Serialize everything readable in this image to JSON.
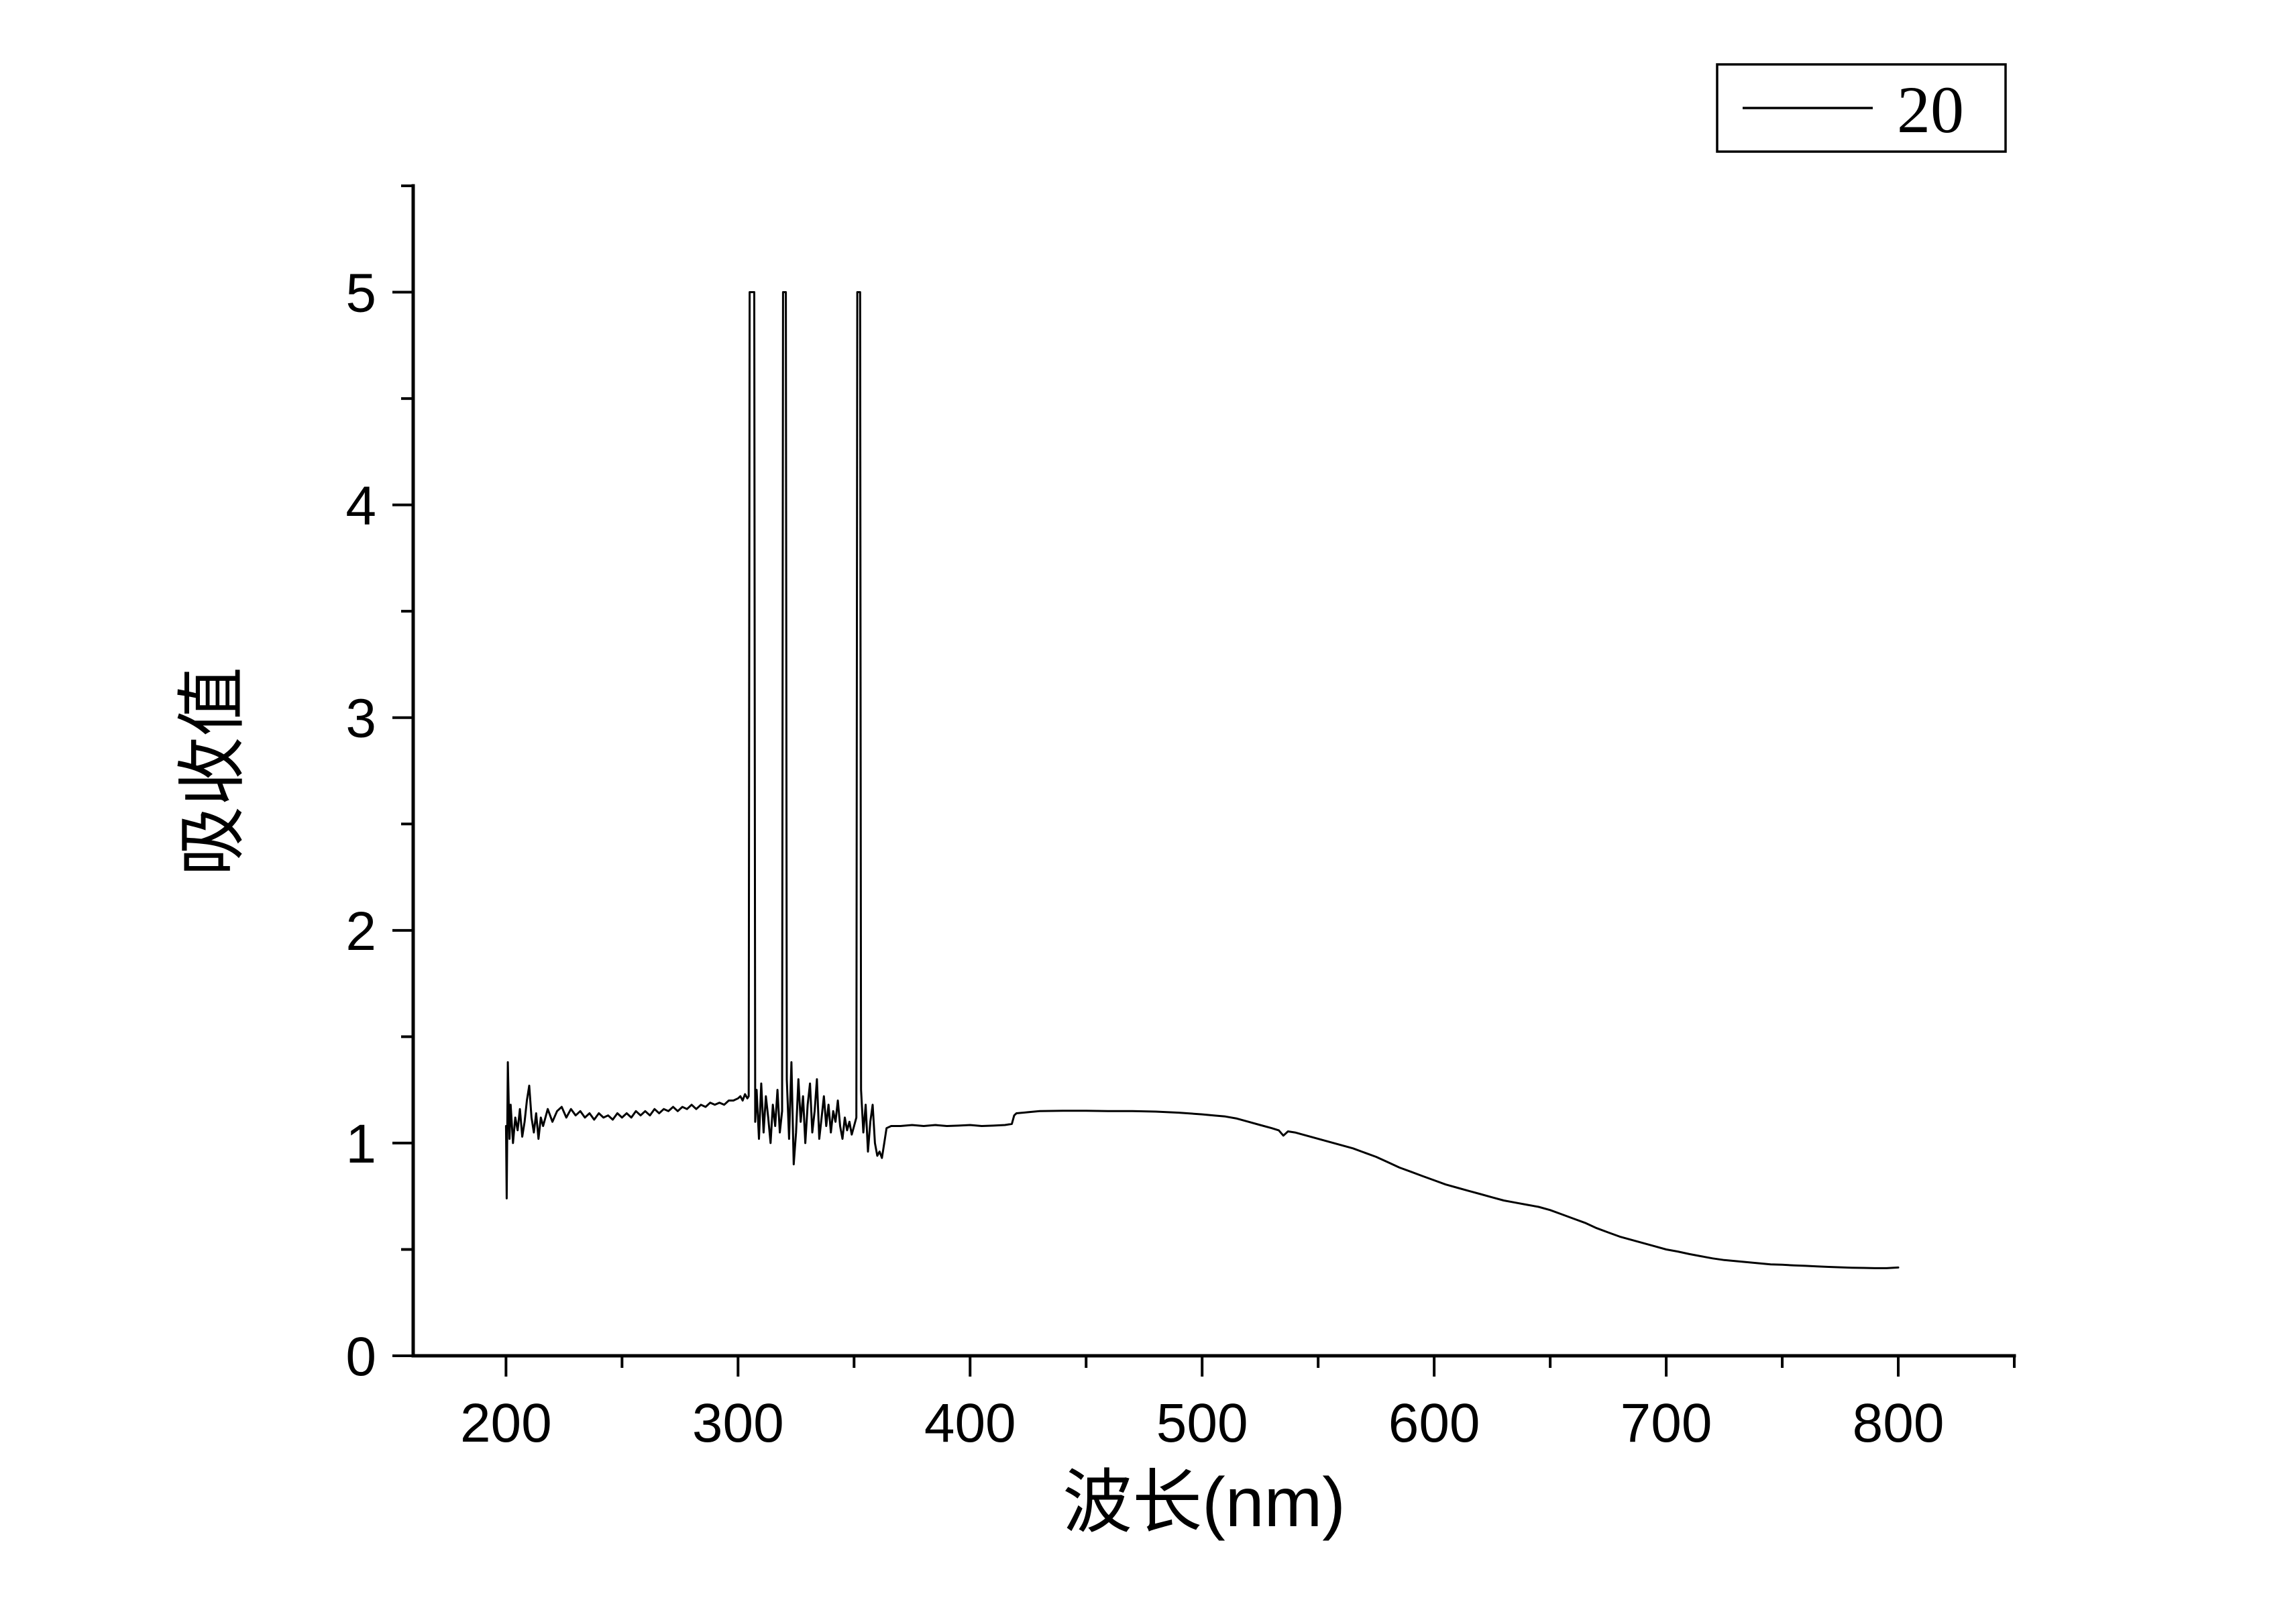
{
  "figure": {
    "background": "#ffffff",
    "line_color": "#000000"
  },
  "legend": {
    "label": "20"
  },
  "chart_data": {
    "type": "line",
    "title": "",
    "xlabel": "波长(nm)",
    "ylabel": "吸收值",
    "xlim": [
      160,
      850
    ],
    "ylim": [
      0,
      5.5
    ],
    "xticks": [
      200,
      300,
      400,
      500,
      600,
      700,
      800
    ],
    "yticks": [
      0,
      1,
      2,
      3,
      4,
      5
    ],
    "x_minor_step": 50,
    "y_minor_step": 0.5,
    "grid": false,
    "legend_position": "top-right-outside",
    "series": [
      {
        "name": "20",
        "color": "#000000",
        "points": [
          [
            200,
            1.08
          ],
          [
            200.3,
            0.74
          ],
          [
            200.8,
            1.38
          ],
          [
            201.5,
            1.02
          ],
          [
            202,
            1.18
          ],
          [
            203,
            1.0
          ],
          [
            204,
            1.12
          ],
          [
            205,
            1.06
          ],
          [
            206,
            1.16
          ],
          [
            207,
            1.03
          ],
          [
            208,
            1.1
          ],
          [
            209,
            1.2
          ],
          [
            210,
            1.27
          ],
          [
            211,
            1.12
          ],
          [
            212,
            1.05
          ],
          [
            213,
            1.14
          ],
          [
            214,
            1.02
          ],
          [
            215,
            1.12
          ],
          [
            216,
            1.08
          ],
          [
            218,
            1.16
          ],
          [
            220,
            1.1
          ],
          [
            222,
            1.15
          ],
          [
            224,
            1.17
          ],
          [
            226,
            1.12
          ],
          [
            228,
            1.16
          ],
          [
            230,
            1.13
          ],
          [
            232,
            1.15
          ],
          [
            234,
            1.12
          ],
          [
            236,
            1.14
          ],
          [
            238,
            1.11
          ],
          [
            240,
            1.14
          ],
          [
            242,
            1.12
          ],
          [
            244,
            1.13
          ],
          [
            246,
            1.11
          ],
          [
            248,
            1.14
          ],
          [
            250,
            1.12
          ],
          [
            252,
            1.14
          ],
          [
            254,
            1.12
          ],
          [
            256,
            1.15
          ],
          [
            258,
            1.13
          ],
          [
            260,
            1.15
          ],
          [
            262,
            1.13
          ],
          [
            264,
            1.16
          ],
          [
            266,
            1.14
          ],
          [
            268,
            1.16
          ],
          [
            270,
            1.15
          ],
          [
            272,
            1.17
          ],
          [
            274,
            1.15
          ],
          [
            276,
            1.17
          ],
          [
            278,
            1.16
          ],
          [
            280,
            1.18
          ],
          [
            282,
            1.16
          ],
          [
            284,
            1.18
          ],
          [
            286,
            1.17
          ],
          [
            288,
            1.19
          ],
          [
            290,
            1.18
          ],
          [
            292,
            1.19
          ],
          [
            294,
            1.18
          ],
          [
            296,
            1.2
          ],
          [
            298,
            1.2
          ],
          [
            300,
            1.21
          ],
          [
            301,
            1.22
          ],
          [
            302,
            1.2
          ],
          [
            303,
            1.23
          ],
          [
            304,
            1.21
          ],
          [
            304.6,
            1.22
          ],
          [
            305,
            5
          ],
          [
            307,
            5
          ],
          [
            307.4,
            1.1
          ],
          [
            308,
            1.25
          ],
          [
            309,
            1.02
          ],
          [
            310,
            1.28
          ],
          [
            311,
            1.05
          ],
          [
            312,
            1.22
          ],
          [
            313,
            1.12
          ],
          [
            314,
            1.0
          ],
          [
            315,
            1.18
          ],
          [
            316,
            1.08
          ],
          [
            317,
            1.25
          ],
          [
            318,
            1.05
          ],
          [
            319,
            1.15
          ],
          [
            319.4,
            5
          ],
          [
            320.6,
            5
          ],
          [
            321,
            1.3
          ],
          [
            322,
            1.02
          ],
          [
            323,
            1.38
          ],
          [
            324,
            0.9
          ],
          [
            325,
            1.05
          ],
          [
            326,
            1.3
          ],
          [
            327,
            1.1
          ],
          [
            328,
            1.22
          ],
          [
            329,
            1.0
          ],
          [
            330,
            1.18
          ],
          [
            331,
            1.28
          ],
          [
            332,
            1.05
          ],
          [
            333,
            1.15
          ],
          [
            334,
            1.3
          ],
          [
            335,
            1.02
          ],
          [
            336,
            1.12
          ],
          [
            337,
            1.22
          ],
          [
            338,
            1.08
          ],
          [
            339,
            1.18
          ],
          [
            340,
            1.05
          ],
          [
            341,
            1.15
          ],
          [
            342,
            1.1
          ],
          [
            343,
            1.2
          ],
          [
            344,
            1.08
          ],
          [
            345,
            1.02
          ],
          [
            346,
            1.12
          ],
          [
            347,
            1.06
          ],
          [
            348,
            1.1
          ],
          [
            349,
            1.04
          ],
          [
            350,
            1.08
          ],
          [
            351,
            1.12
          ],
          [
            351.4,
            5
          ],
          [
            352.6,
            5
          ],
          [
            353,
            1.25
          ],
          [
            354,
            1.05
          ],
          [
            355,
            1.18
          ],
          [
            356,
            0.96
          ],
          [
            357,
            1.1
          ],
          [
            358,
            1.18
          ],
          [
            359,
            1.0
          ],
          [
            360,
            0.94
          ],
          [
            361,
            0.96
          ],
          [
            362,
            0.93
          ],
          [
            363,
            1.0
          ],
          [
            364,
            1.07
          ],
          [
            366,
            1.08
          ],
          [
            370,
            1.08
          ],
          [
            375,
            1.085
          ],
          [
            380,
            1.08
          ],
          [
            385,
            1.085
          ],
          [
            390,
            1.08
          ],
          [
            395,
            1.082
          ],
          [
            400,
            1.085
          ],
          [
            405,
            1.08
          ],
          [
            410,
            1.082
          ],
          [
            415,
            1.085
          ],
          [
            418,
            1.09
          ],
          [
            419,
            1.13
          ],
          [
            420,
            1.14
          ],
          [
            425,
            1.145
          ],
          [
            430,
            1.15
          ],
          [
            440,
            1.152
          ],
          [
            450,
            1.152
          ],
          [
            460,
            1.15
          ],
          [
            470,
            1.15
          ],
          [
            480,
            1.148
          ],
          [
            490,
            1.143
          ],
          [
            500,
            1.135
          ],
          [
            505,
            1.13
          ],
          [
            510,
            1.125
          ],
          [
            515,
            1.115
          ],
          [
            520,
            1.1
          ],
          [
            525,
            1.085
          ],
          [
            530,
            1.07
          ],
          [
            533,
            1.06
          ],
          [
            535,
            1.035
          ],
          [
            537,
            1.055
          ],
          [
            540,
            1.05
          ],
          [
            545,
            1.035
          ],
          [
            550,
            1.02
          ],
          [
            555,
            1.005
          ],
          [
            560,
            0.99
          ],
          [
            565,
            0.975
          ],
          [
            570,
            0.955
          ],
          [
            575,
            0.935
          ],
          [
            580,
            0.91
          ],
          [
            585,
            0.885
          ],
          [
            590,
            0.865
          ],
          [
            595,
            0.845
          ],
          [
            600,
            0.825
          ],
          [
            605,
            0.805
          ],
          [
            610,
            0.79
          ],
          [
            615,
            0.775
          ],
          [
            620,
            0.76
          ],
          [
            625,
            0.745
          ],
          [
            630,
            0.73
          ],
          [
            635,
            0.72
          ],
          [
            640,
            0.71
          ],
          [
            645,
            0.7
          ],
          [
            650,
            0.685
          ],
          [
            655,
            0.665
          ],
          [
            660,
            0.645
          ],
          [
            665,
            0.625
          ],
          [
            670,
            0.6
          ],
          [
            675,
            0.58
          ],
          [
            680,
            0.56
          ],
          [
            685,
            0.545
          ],
          [
            690,
            0.53
          ],
          [
            695,
            0.515
          ],
          [
            700,
            0.5
          ],
          [
            705,
            0.49
          ],
          [
            710,
            0.478
          ],
          [
            715,
            0.468
          ],
          [
            720,
            0.458
          ],
          [
            725,
            0.45
          ],
          [
            730,
            0.445
          ],
          [
            735,
            0.44
          ],
          [
            740,
            0.435
          ],
          [
            745,
            0.43
          ],
          [
            750,
            0.428
          ],
          [
            755,
            0.425
          ],
          [
            760,
            0.423
          ],
          [
            765,
            0.42
          ],
          [
            770,
            0.418
          ],
          [
            775,
            0.416
          ],
          [
            780,
            0.414
          ],
          [
            785,
            0.413
          ],
          [
            790,
            0.412
          ],
          [
            795,
            0.412
          ],
          [
            800,
            0.415
          ]
        ]
      }
    ]
  }
}
